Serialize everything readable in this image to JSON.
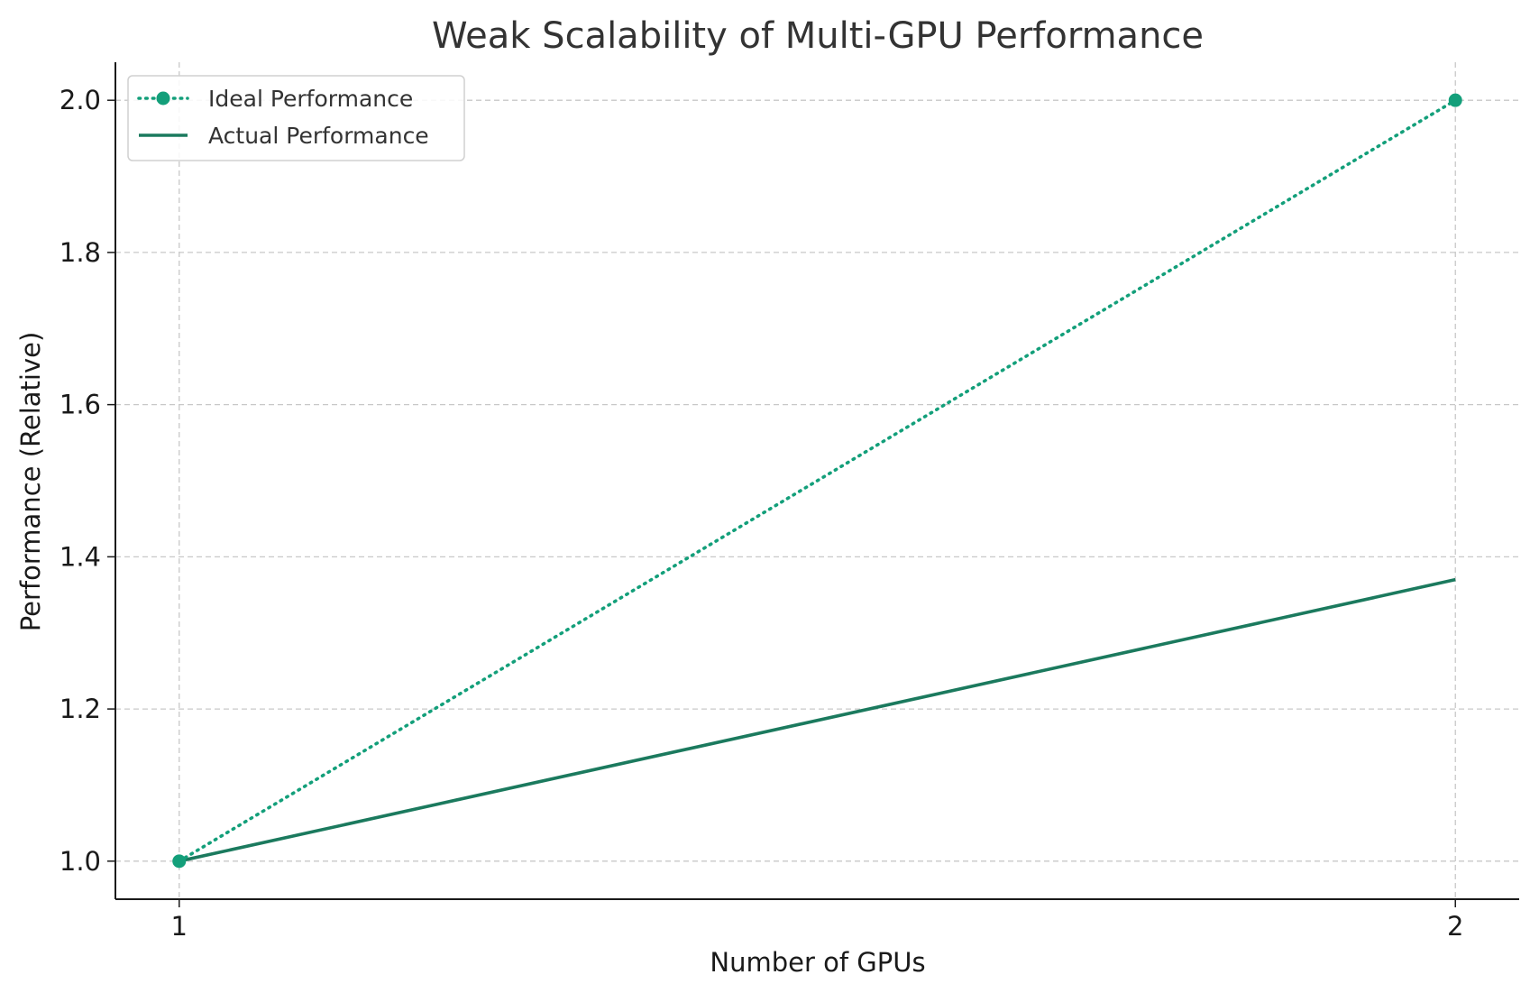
{
  "chart_data": {
    "type": "line",
    "title": "Weak Scalability of Multi-GPU Performance",
    "xlabel": "Number of GPUs",
    "ylabel": "Performance (Relative)",
    "x": [
      1,
      2
    ],
    "xticks": [
      "1",
      "2"
    ],
    "xlim": [
      0.95,
      2.05
    ],
    "yticks": [
      "1.0",
      "1.2",
      "1.4",
      "1.6",
      "1.8",
      "2.0"
    ],
    "ylim": [
      0.95,
      2.05
    ],
    "grid": true,
    "legend_position": "top-left",
    "series": [
      {
        "name": "Ideal Performance",
        "values": [
          1.0,
          2.0
        ],
        "style": "dotted",
        "marker": "circle",
        "color": "#139f7a"
      },
      {
        "name": "Actual Performance",
        "values": [
          1.0,
          1.37
        ],
        "style": "solid",
        "marker": "none",
        "color": "#1b7a5e"
      }
    ]
  }
}
